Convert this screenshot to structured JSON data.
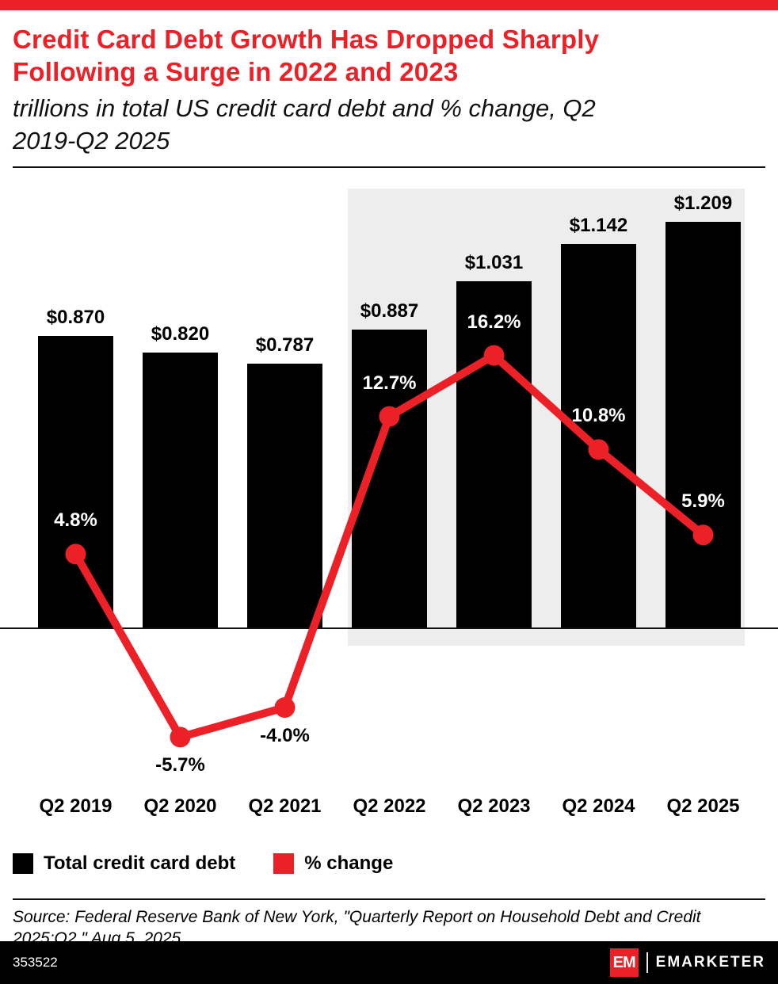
{
  "header": {
    "title_line1": "Credit Card Debt Growth Has Dropped Sharply",
    "title_line2": "Following a Surge in 2022 and 2023",
    "subtitle_line1": "trillions in total US credit card debt and % change, Q2",
    "subtitle_line2": "2019-Q2 2025"
  },
  "colors": {
    "accent_red": "#EC2027",
    "bar_black": "#000000",
    "highlight_gray": "#EDEDED",
    "label_white": "#FFFFFF",
    "footer_black": "#000000"
  },
  "chart_data": {
    "type": "combo",
    "title": "Credit Card Debt Growth Has Dropped Sharply Following a Surge in 2022 and 2023",
    "subtitle": "trillions in total US credit card debt and % change, Q2 2019-Q2 2025",
    "categories": [
      "Q2 2019",
      "Q2 2020",
      "Q2 2021",
      "Q2 2022",
      "Q2 2023",
      "Q2 2024",
      "Q2 2025"
    ],
    "series": [
      {
        "name": "Total credit card debt",
        "type": "bar",
        "units": "trillions USD",
        "values": [
          0.87,
          0.82,
          0.787,
          0.887,
          1.031,
          1.142,
          1.209
        ],
        "labels": [
          "$0.870",
          "$0.820",
          "$0.787",
          "$0.887",
          "$1.031",
          "$1.142",
          "$1.209"
        ]
      },
      {
        "name": "% change",
        "type": "line",
        "units": "percent",
        "values": [
          4.8,
          -5.7,
          -4.0,
          12.7,
          16.2,
          10.8,
          5.9
        ],
        "labels": [
          "4.8%",
          "-5.7%",
          "-4.0%",
          "12.7%",
          "16.2%",
          "10.8%",
          "5.9%"
        ]
      }
    ],
    "highlight_region": {
      "from": "Q2 2022",
      "to": "Q2 2025"
    },
    "bar_axis": {
      "min": 0,
      "max": 1.3
    },
    "line_axis": {
      "min": -8,
      "max": 18
    },
    "gridlines": false,
    "legend_position": "bottom"
  },
  "legend": [
    {
      "label": "Total credit card debt",
      "color": "#000000"
    },
    {
      "label": "% change",
      "color": "#EC2027"
    }
  ],
  "source": {
    "line1": "Source: Federal Reserve Bank of New York, \"Quarterly Report on Household Debt and Credit",
    "line2": "2025:Q2,\" Aug 5, 2025"
  },
  "footer": {
    "chart_number": "353522",
    "brand_badge": "EM",
    "brand_name": "EMARKETER"
  }
}
